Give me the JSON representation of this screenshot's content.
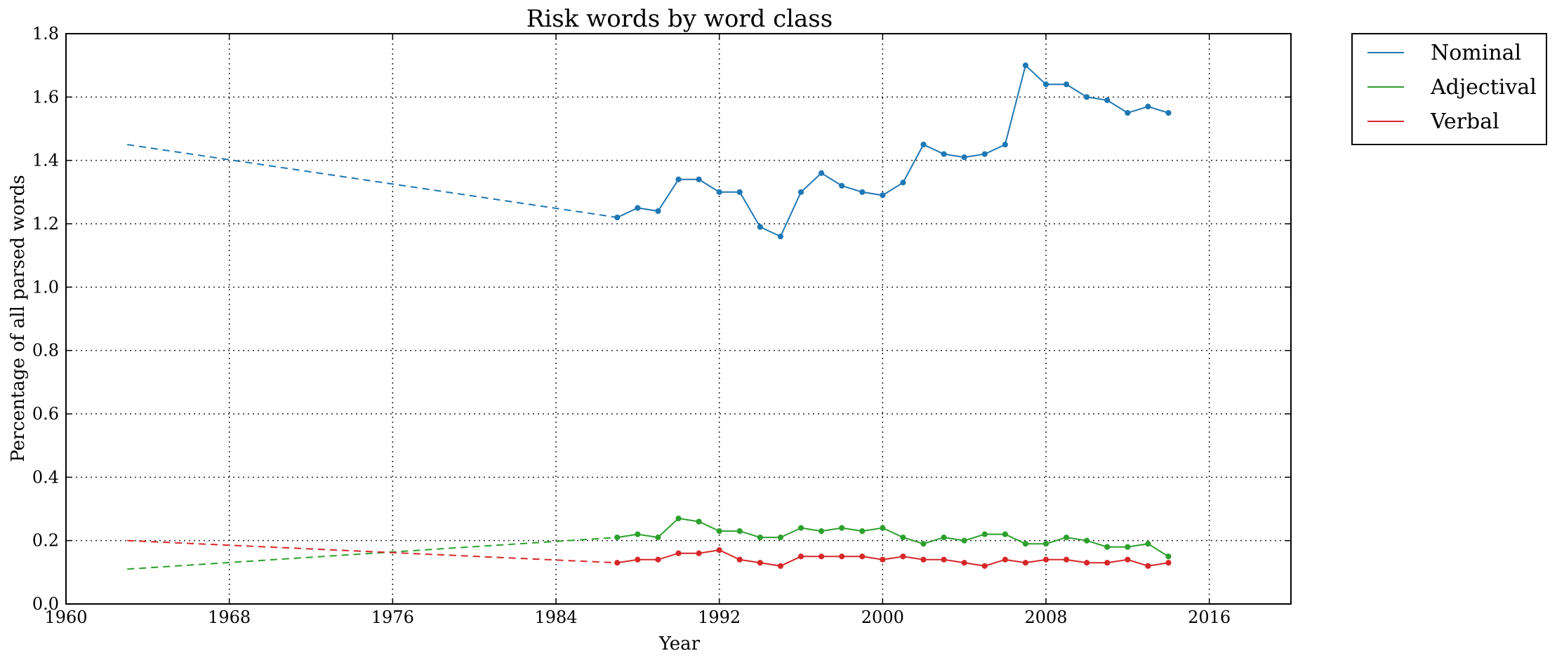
{
  "chart_data": {
    "type": "line",
    "title": "Risk words by word class",
    "xlabel": "Year",
    "ylabel": "Percentage of all parsed words",
    "xlim": [
      1960,
      2020
    ],
    "ylim": [
      0,
      1.8
    ],
    "xticks": [
      1960,
      1968,
      1976,
      1984,
      1992,
      2000,
      2008,
      2016
    ],
    "yticks": [
      "0.0",
      "0.2",
      "0.4",
      "0.6",
      "0.8",
      "1.0",
      "1.2",
      "1.4",
      "1.6",
      "1.8"
    ],
    "grid": true,
    "legend_position": "outside-top-right",
    "series": [
      {
        "name": "Nominal",
        "color": "#1f77b4",
        "trend_start": {
          "x": 1963,
          "y": 1.45
        },
        "x": [
          1987,
          1988,
          1989,
          1990,
          1991,
          1992,
          1993,
          1994,
          1995,
          1996,
          1997,
          1998,
          1999,
          2000,
          2001,
          2002,
          2003,
          2004,
          2005,
          2006,
          2007,
          2008,
          2009,
          2010,
          2011,
          2012,
          2013,
          2014
        ],
        "values": [
          1.22,
          1.25,
          1.24,
          1.34,
          1.34,
          1.3,
          1.3,
          1.19,
          1.16,
          1.3,
          1.36,
          1.32,
          1.3,
          1.29,
          1.33,
          1.45,
          1.42,
          1.41,
          1.42,
          1.45,
          1.7,
          1.64,
          1.64,
          1.6,
          1.59,
          1.55,
          1.57,
          1.55
        ]
      },
      {
        "name": "Adjectival",
        "color": "#2ca02c",
        "trend_start": {
          "x": 1963,
          "y": 0.11
        },
        "x": [
          1987,
          1988,
          1989,
          1990,
          1991,
          1992,
          1993,
          1994,
          1995,
          1996,
          1997,
          1998,
          1999,
          2000,
          2001,
          2002,
          2003,
          2004,
          2005,
          2006,
          2007,
          2008,
          2009,
          2010,
          2011,
          2012,
          2013,
          2014
        ],
        "values": [
          0.21,
          0.22,
          0.21,
          0.27,
          0.26,
          0.23,
          0.23,
          0.21,
          0.21,
          0.24,
          0.23,
          0.24,
          0.23,
          0.24,
          0.21,
          0.19,
          0.21,
          0.2,
          0.22,
          0.22,
          0.19,
          0.19,
          0.21,
          0.2,
          0.18,
          0.18,
          0.19,
          0.15
        ]
      },
      {
        "name": "Verbal",
        "color": "#d62728",
        "trend_start": {
          "x": 1963,
          "y": 0.2
        },
        "x": [
          1987,
          1988,
          1989,
          1990,
          1991,
          1992,
          1993,
          1994,
          1995,
          1996,
          1997,
          1998,
          1999,
          2000,
          2001,
          2002,
          2003,
          2004,
          2005,
          2006,
          2007,
          2008,
          2009,
          2010,
          2011,
          2012,
          2013,
          2014
        ],
        "values": [
          0.13,
          0.14,
          0.14,
          0.16,
          0.16,
          0.17,
          0.14,
          0.13,
          0.12,
          0.15,
          0.15,
          0.15,
          0.15,
          0.14,
          0.15,
          0.14,
          0.14,
          0.13,
          0.12,
          0.14,
          0.13,
          0.14,
          0.14,
          0.13,
          0.13,
          0.14,
          0.12,
          0.13
        ]
      }
    ]
  }
}
